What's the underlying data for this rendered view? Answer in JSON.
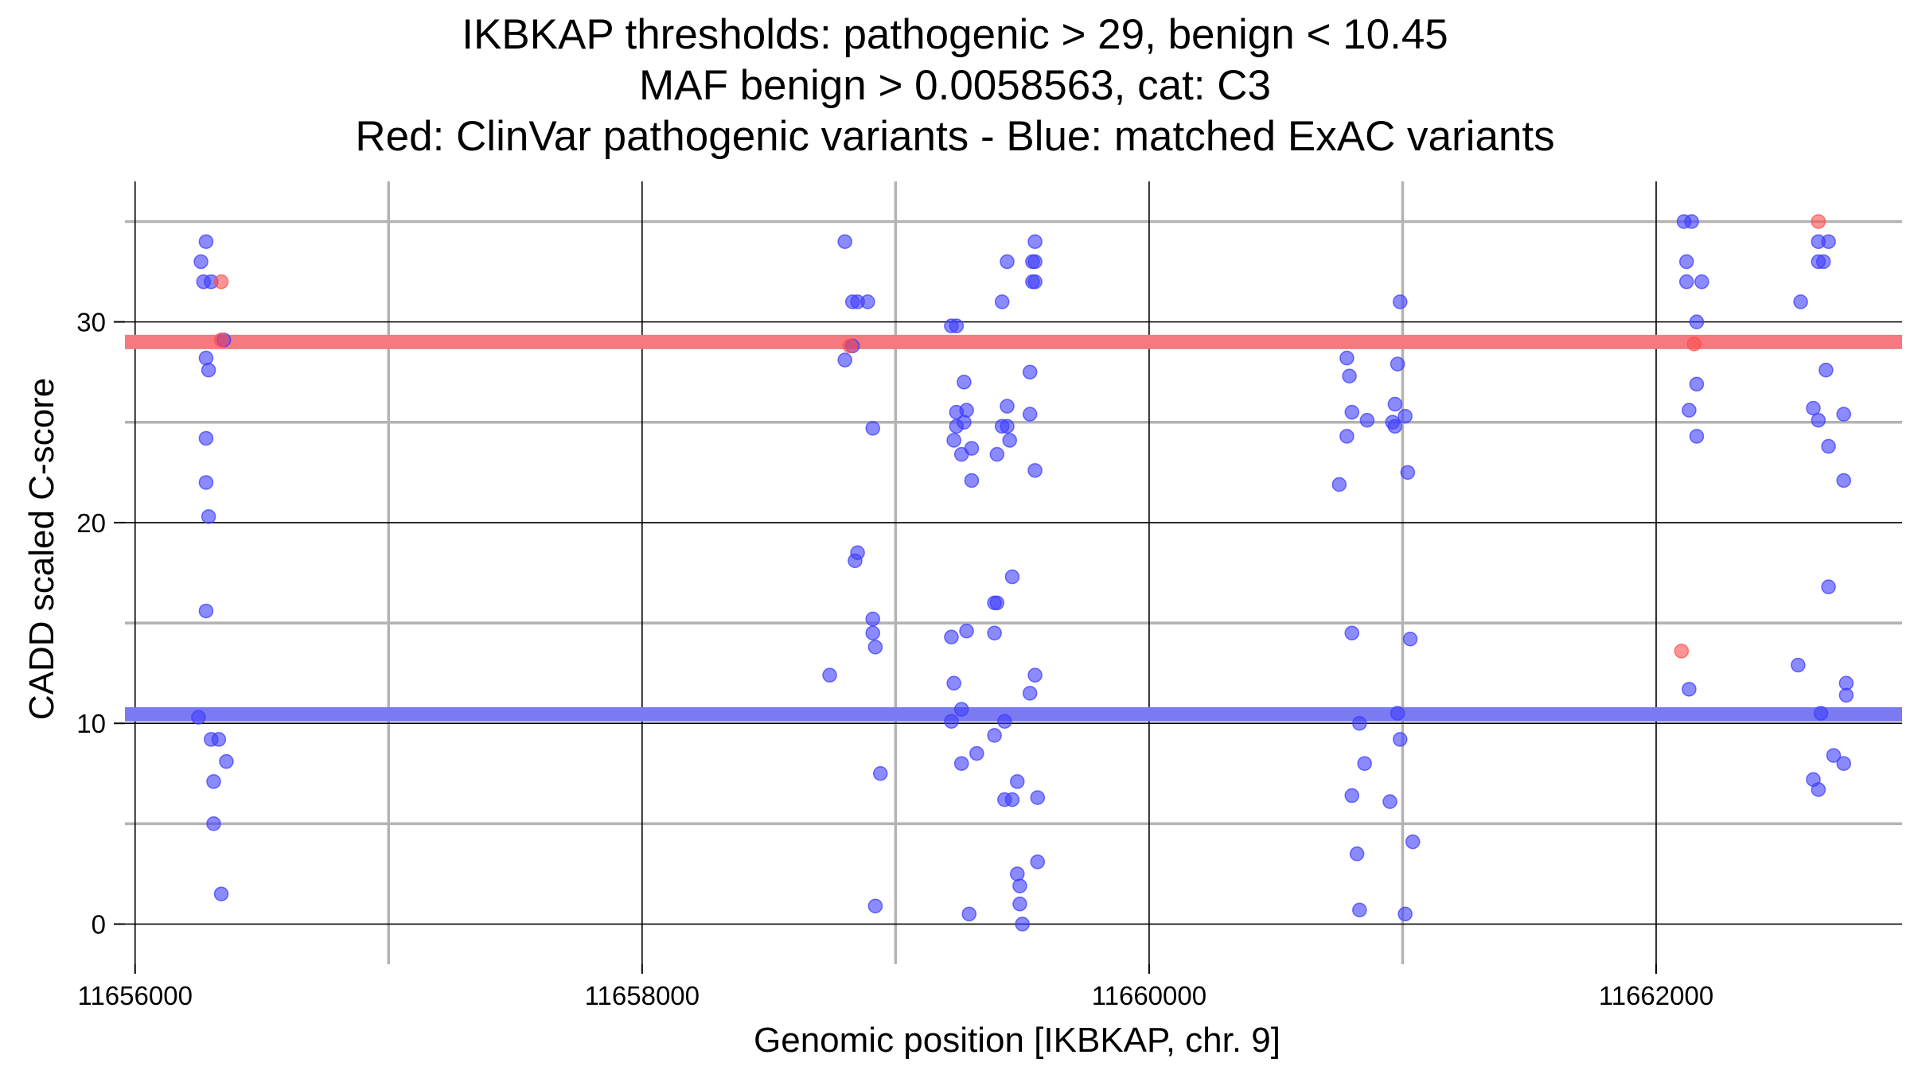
{
  "chart_data": {
    "type": "scatter",
    "title_lines": [
      "IKBKAP thresholds: pathogenic > 29, benign < 10.45",
      "MAF benign > 0.0058563, cat: C3",
      "Red: ClinVar pathogenic variants - Blue: matched ExAC variants"
    ],
    "xlabel": "Genomic position [IKBKAP, chr. 9]",
    "ylabel": "CADD scaled C-score",
    "xlim": [
      11655960,
      11662970
    ],
    "ylim": [
      -2,
      37
    ],
    "x_ticks": [
      11656000,
      11658000,
      11660000,
      11662000
    ],
    "y_ticks": [
      0,
      10,
      20,
      30
    ],
    "x_minor_grid": [
      11657000,
      11659000,
      11661000
    ],
    "y_minor_grid": [
      5,
      15,
      25,
      35
    ],
    "thresholds": [
      {
        "name": "pathogenic",
        "value": 29,
        "color": "#f47a7f"
      },
      {
        "name": "benign",
        "value": 10.45,
        "color": "#7a7af2"
      }
    ],
    "series": [
      {
        "name": "ClinVar pathogenic variants",
        "color": "#ff4d4d",
        "points": [
          [
            11656340,
            32
          ],
          [
            11656340,
            29.1
          ],
          [
            11658820,
            28.8
          ],
          [
            11662100,
            13.6
          ],
          [
            11662150,
            28.9
          ],
          [
            11662640,
            35
          ]
        ]
      },
      {
        "name": "matched ExAC variants",
        "color": "#3d3dff",
        "points": [
          [
            11656280,
            34
          ],
          [
            11656260,
            33
          ],
          [
            11656270,
            32
          ],
          [
            11656300,
            32
          ],
          [
            11656280,
            28.2
          ],
          [
            11656290,
            27.6
          ],
          [
            11656280,
            24.2
          ],
          [
            11656280,
            22
          ],
          [
            11656290,
            20.3
          ],
          [
            11656280,
            15.6
          ],
          [
            11656250,
            10.3
          ],
          [
            11656300,
            9.2
          ],
          [
            11656330,
            9.2
          ],
          [
            11656310,
            7.1
          ],
          [
            11656360,
            8.1
          ],
          [
            11656310,
            5
          ],
          [
            11656340,
            1.5
          ],
          [
            11656350,
            29.1
          ],
          [
            11658800,
            34
          ],
          [
            11658830,
            31
          ],
          [
            11658850,
            31
          ],
          [
            11658890,
            31
          ],
          [
            11658800,
            28.1
          ],
          [
            11658830,
            28.8
          ],
          [
            11658910,
            24.7
          ],
          [
            11658850,
            18.5
          ],
          [
            11658840,
            18.1
          ],
          [
            11658910,
            15.2
          ],
          [
            11658910,
            14.5
          ],
          [
            11658920,
            13.8
          ],
          [
            11658740,
            12.4
          ],
          [
            11658940,
            7.5
          ],
          [
            11658920,
            0.9
          ],
          [
            11659240,
            29.8
          ],
          [
            11659220,
            29.8
          ],
          [
            11659270,
            27
          ],
          [
            11659240,
            25.5
          ],
          [
            11659280,
            25.6
          ],
          [
            11659240,
            24.8
          ],
          [
            11659270,
            25
          ],
          [
            11659230,
            24.1
          ],
          [
            11659300,
            23.7
          ],
          [
            11659260,
            23.4
          ],
          [
            11659300,
            22.1
          ],
          [
            11659220,
            14.3
          ],
          [
            11659280,
            14.6
          ],
          [
            11659230,
            12
          ],
          [
            11659260,
            10.7
          ],
          [
            11659220,
            10.1
          ],
          [
            11659320,
            8.5
          ],
          [
            11659260,
            8
          ],
          [
            11659290,
            0.5
          ],
          [
            11659440,
            33
          ],
          [
            11659420,
            31
          ],
          [
            11659440,
            25.8
          ],
          [
            11659420,
            24.8
          ],
          [
            11659440,
            24.8
          ],
          [
            11659450,
            24.1
          ],
          [
            11659400,
            23.4
          ],
          [
            11659460,
            17.3
          ],
          [
            11659390,
            16
          ],
          [
            11659400,
            16
          ],
          [
            11659390,
            14.5
          ],
          [
            11659430,
            10.1
          ],
          [
            11659390,
            9.4
          ],
          [
            11659460,
            6.2
          ],
          [
            11659430,
            6.2
          ],
          [
            11659480,
            7.1
          ],
          [
            11659480,
            2.5
          ],
          [
            11659490,
            1.9
          ],
          [
            11659490,
            1
          ],
          [
            11659500,
            0
          ],
          [
            11659550,
            34
          ],
          [
            11659550,
            33
          ],
          [
            11659540,
            33
          ],
          [
            11659550,
            32
          ],
          [
            11659540,
            32
          ],
          [
            11659530,
            27.5
          ],
          [
            11659530,
            25.4
          ],
          [
            11659550,
            22.6
          ],
          [
            11659550,
            12.4
          ],
          [
            11659530,
            11.5
          ],
          [
            11659560,
            6.3
          ],
          [
            11659560,
            3.1
          ],
          [
            11660780,
            28.2
          ],
          [
            11660790,
            27.3
          ],
          [
            11660800,
            25.5
          ],
          [
            11660780,
            24.3
          ],
          [
            11660750,
            21.9
          ],
          [
            11660800,
            14.5
          ],
          [
            11660860,
            25.1
          ],
          [
            11660830,
            10
          ],
          [
            11660850,
            8
          ],
          [
            11660800,
            6.4
          ],
          [
            11660820,
            3.5
          ],
          [
            11660830,
            0.7
          ],
          [
            11660990,
            31
          ],
          [
            11660980,
            27.9
          ],
          [
            11660970,
            25.9
          ],
          [
            11660960,
            25
          ],
          [
            11660970,
            24.8
          ],
          [
            11661010,
            25.3
          ],
          [
            11661020,
            22.5
          ],
          [
            11661030,
            14.2
          ],
          [
            11660980,
            10.5
          ],
          [
            11660990,
            9.2
          ],
          [
            11660950,
            6.1
          ],
          [
            11661040,
            4.1
          ],
          [
            11661010,
            0.5
          ],
          [
            11662110,
            35
          ],
          [
            11662140,
            35
          ],
          [
            11662120,
            33
          ],
          [
            11662120,
            32
          ],
          [
            11662180,
            32
          ],
          [
            11662160,
            30
          ],
          [
            11662160,
            26.9
          ],
          [
            11662130,
            25.6
          ],
          [
            11662160,
            24.3
          ],
          [
            11662130,
            11.7
          ],
          [
            11662640,
            34
          ],
          [
            11662680,
            34
          ],
          [
            11662660,
            33
          ],
          [
            11662640,
            33
          ],
          [
            11662570,
            31
          ],
          [
            11662670,
            27.6
          ],
          [
            11662620,
            25.7
          ],
          [
            11662640,
            25.1
          ],
          [
            11662740,
            25.4
          ],
          [
            11662680,
            23.8
          ],
          [
            11662740,
            22.1
          ],
          [
            11662680,
            16.8
          ],
          [
            11662560,
            12.9
          ],
          [
            11662750,
            12
          ],
          [
            11662750,
            11.4
          ],
          [
            11662650,
            10.5
          ],
          [
            11662700,
            8.4
          ],
          [
            11662740,
            8
          ],
          [
            11662620,
            7.2
          ],
          [
            11662640,
            6.7
          ]
        ]
      }
    ]
  }
}
